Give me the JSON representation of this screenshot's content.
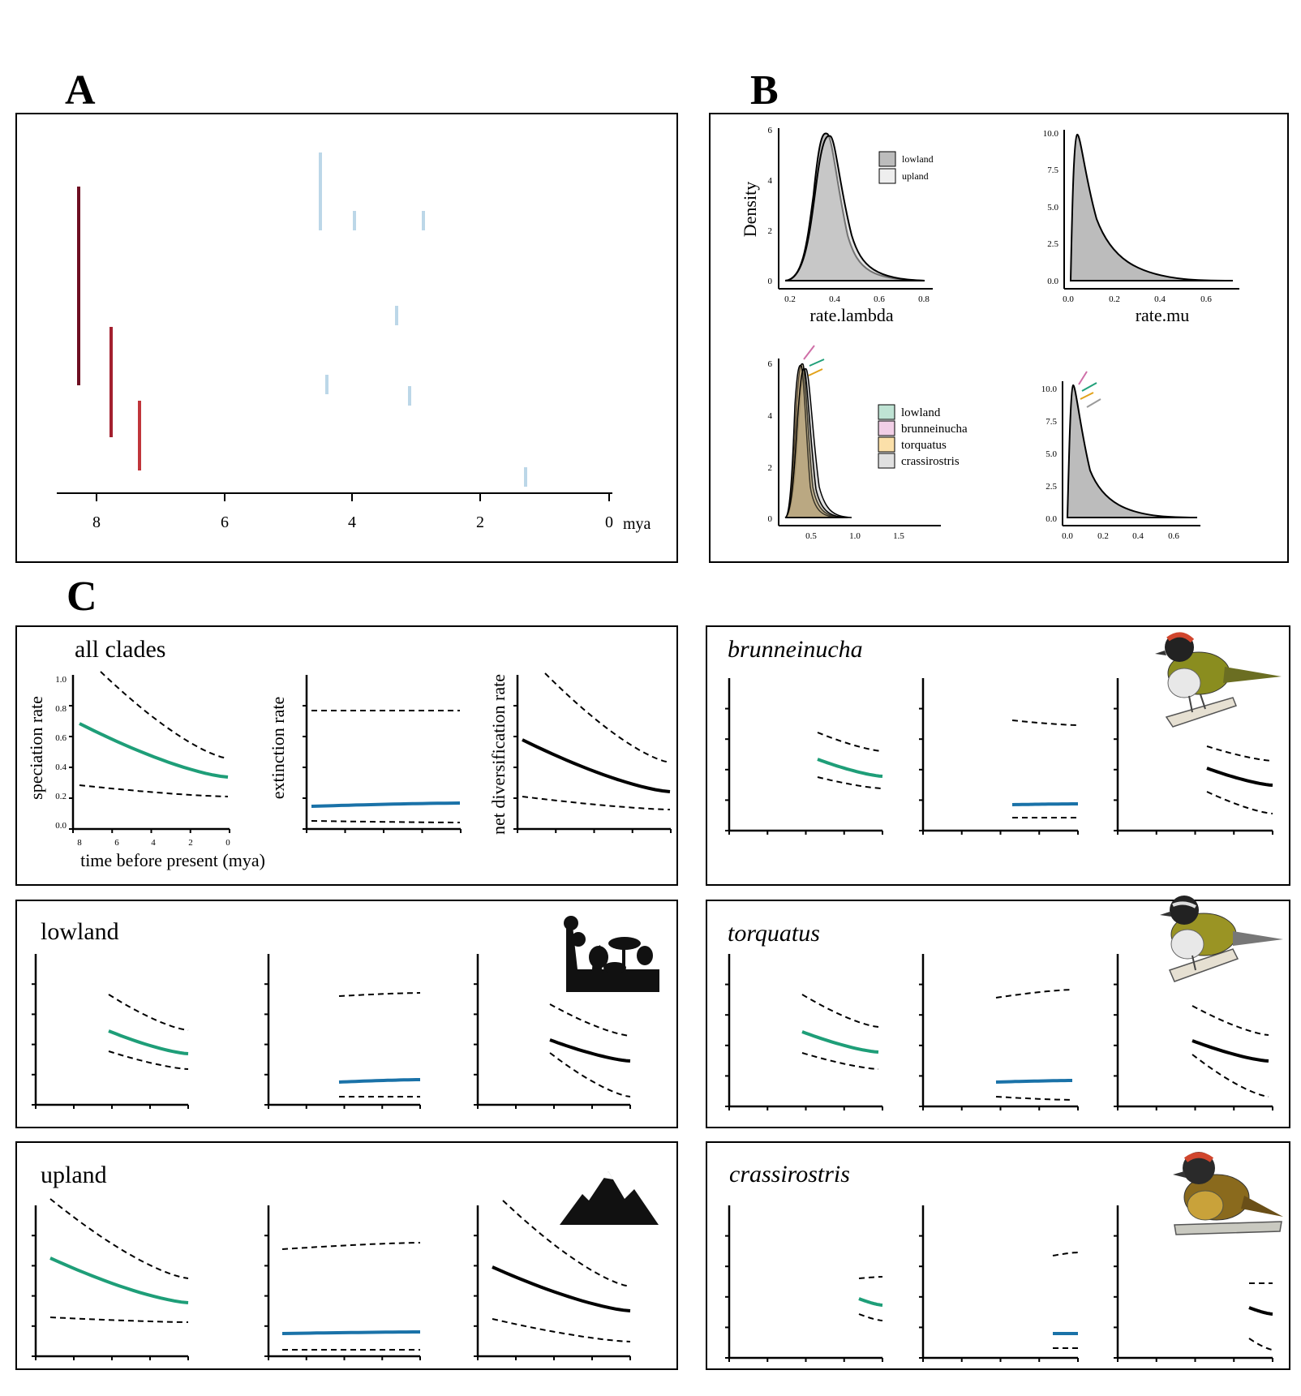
{
  "panel_labels": {
    "a": "A",
    "b": "B",
    "c": "C"
  },
  "tree": {
    "axis_ticks": [
      "8",
      "6",
      "4",
      "2",
      "0"
    ],
    "axis_unit": "mya",
    "colors": {
      "root": "#6e0f22",
      "red": "#c0353b",
      "pale": "#e6eef5",
      "light_blue": "#9bc4dd",
      "dark_blue": "#0d2d5c"
    }
  },
  "density_top_left": {
    "xlabel": "rate.lambda",
    "ylabel": "Density",
    "x_ticks": [
      "0.2",
      "0.4",
      "0.6",
      "0.8"
    ],
    "y_ticks": [
      "0",
      "2",
      "4",
      "6"
    ],
    "legend": [
      "lowland",
      "upland"
    ]
  },
  "density_top_right": {
    "xlabel": "rate.mu",
    "x_ticks": [
      "0.0",
      "0.2",
      "0.4",
      "0.6"
    ],
    "y_ticks": [
      "0.0",
      "2.5",
      "5.0",
      "7.5",
      "10.0"
    ]
  },
  "density_bottom_left": {
    "x_ticks": [
      "0.5",
      "1.0",
      "1.5"
    ],
    "y_ticks": [
      "0",
      "2",
      "4",
      "6"
    ],
    "legend": [
      "lowland",
      "brunneinucha",
      "torquatus",
      "crassirostris"
    ],
    "legend_colors": [
      "#bfe3d4",
      "#f1cfe6",
      "#fbe0a9",
      "#e0e0e0"
    ]
  },
  "density_bottom_right": {
    "x_ticks": [
      "0.0",
      "0.2",
      "0.4",
      "0.6"
    ],
    "y_ticks": [
      "0.0",
      "2.5",
      "5.0",
      "7.5",
      "10.0"
    ],
    "arrow_colors": [
      "#cf6fa7",
      "#21a07a",
      "#e2a21a",
      "#9a9a9a"
    ]
  },
  "rate_panels": {
    "all_clades": {
      "title": "all clades",
      "ylabel_speciation": "speciation rate",
      "ylabel_extinction": "extinction rate",
      "ylabel_net": "net diversification rate",
      "xlabel": "time before present (mya)",
      "x_ticks": [
        "8",
        "6",
        "4",
        "2",
        "0"
      ],
      "y_ticks": [
        "0.0",
        "0.2",
        "0.4",
        "0.6",
        "0.8",
        "1.0"
      ]
    },
    "lowland": {
      "title": "lowland"
    },
    "upland": {
      "title": "upland"
    },
    "brunneinucha": {
      "title": "brunneinucha"
    },
    "torquatus": {
      "title": "torquatus"
    },
    "crassirostris": {
      "title": "crassirostris"
    }
  },
  "line_colors": {
    "speciation": "#1e9e78",
    "extinction": "#1a72a8",
    "net": "#000000"
  }
}
